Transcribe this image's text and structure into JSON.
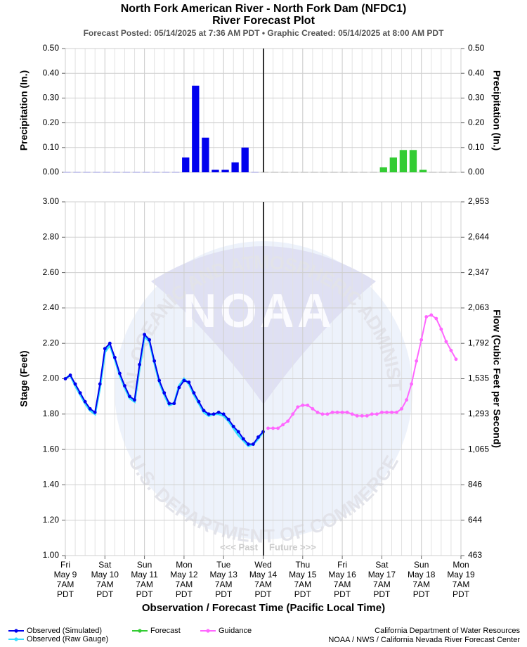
{
  "title": [
    "North Fork American River - North Fork Dam (NFDC1)",
    "River Forecast Plot"
  ],
  "subtitle": "Forecast Posted: 05/14/2025 at 7:36 AM PDT  •  Graphic Created: 05/14/2025 at 8:00 AM PDT",
  "x_label": "Observation / Forecast Time (Pacific Local Time)",
  "past_label": "<<< Past",
  "future_label": "Future >>>",
  "watermark": {
    "logo": "NOAA",
    "ring_top": "NATIONAL OCEANIC AND ATMOSPHERIC ADMINISTRATION",
    "ring_bottom": "U.S. DEPARTMENT OF COMMERCE"
  },
  "credits": [
    "California Department of Water Resources",
    "NOAA / NWS / California Nevada River Forecast Center"
  ],
  "chart_data": [
    {
      "type": "bar",
      "y_label": "Precipitation (In.)",
      "y2_label": "Precipitation (In.)",
      "xlim": [
        "05/09 07:00",
        "05/19 07:00"
      ],
      "ylim": [
        0,
        0.5
      ],
      "yticks": [
        {
          "value": 0,
          "label": "0.00"
        },
        {
          "value": 0.1,
          "label": "0.10"
        },
        {
          "value": 0.2,
          "label": "0.20"
        },
        {
          "value": 0.3,
          "label": "0.30"
        },
        {
          "value": 0.4,
          "label": "0.40"
        },
        {
          "value": 0.5,
          "label": "0.50"
        }
      ],
      "y2lim": [
        0,
        0.5
      ],
      "y2ticks": [
        {
          "value": 0,
          "label": "0.00"
        },
        {
          "value": 0.1,
          "label": "0.10"
        },
        {
          "value": 0.2,
          "label": "0.20"
        },
        {
          "value": 0.3,
          "label": "0.30"
        },
        {
          "value": 0.4,
          "label": "0.40"
        },
        {
          "value": 0.5,
          "label": "0.50"
        }
      ],
      "grid": true,
      "series": [
        {
          "color": "#0000ee",
          "zero_color": "#b8b8e8",
          "x": [
            "05/09 05:00",
            "05/09 11:00",
            "05/09 17:00",
            "05/09 23:00",
            "05/10 05:00",
            "05/10 11:00",
            "05/10 17:00",
            "05/10 23:00",
            "05/11 05:00",
            "05/11 11:00",
            "05/11 17:00",
            "05/11 23:00",
            "05/12 05:00",
            "05/12 11:00",
            "05/12 17:00",
            "05/12 23:00",
            "05/13 05:00",
            "05/13 11:00",
            "05/13 17:00",
            "05/13 23:00"
          ],
          "values": [
            0,
            0,
            0,
            0,
            0,
            0,
            0,
            0,
            0,
            0,
            0,
            0,
            0.06,
            0.35,
            0.14,
            0.01,
            0.01,
            0.04,
            0.1,
            0
          ]
        },
        {
          "color": "#33cc33",
          "zero_color": "#c8c8c8",
          "x": [
            "05/14 05:00",
            "05/14 11:00",
            "05/14 17:00",
            "05/14 23:00",
            "05/15 05:00",
            "05/15 11:00",
            "05/15 17:00",
            "05/15 23:00",
            "05/16 05:00",
            "05/16 11:00",
            "05/16 17:00",
            "05/16 23:00",
            "05/17 05:00",
            "05/17 11:00",
            "05/17 17:00",
            "05/17 23:00",
            "05/18 05:00",
            "05/18 11:00",
            "05/18 17:00",
            "05/18 23:00"
          ],
          "values": [
            0,
            0,
            0,
            0,
            0,
            0,
            0,
            0,
            0,
            0,
            0,
            0,
            0.02,
            0.06,
            0.09,
            0.09,
            0.01,
            0,
            0,
            0
          ]
        }
      ]
    },
    {
      "type": "line",
      "y_label": "Stage (Feet)",
      "y2_label": "Flow (Cubic Feet per Second)",
      "xlim": [
        "05/09 07:00",
        "05/19 07:00"
      ],
      "xticks": [
        {
          "value": "05/09 07:00",
          "label": [
            "Fri",
            "May 9",
            "7AM",
            "PDT"
          ]
        },
        {
          "value": "05/10 07:00",
          "label": [
            "Sat",
            "May 10",
            "7AM",
            "PDT"
          ]
        },
        {
          "value": "05/11 07:00",
          "label": [
            "Sun",
            "May 11",
            "7AM",
            "PDT"
          ]
        },
        {
          "value": "05/12 07:00",
          "label": [
            "Mon",
            "May 12",
            "7AM",
            "PDT"
          ]
        },
        {
          "value": "05/13 07:00",
          "label": [
            "Tue",
            "May 13",
            "7AM",
            "PDT"
          ]
        },
        {
          "value": "05/14 07:00",
          "label": [
            "Wed",
            "May 14",
            "7AM",
            "PDT"
          ]
        },
        {
          "value": "05/15 07:00",
          "label": [
            "Thu",
            "May 15",
            "7AM",
            "PDT"
          ]
        },
        {
          "value": "05/16 07:00",
          "label": [
            "Fri",
            "May 16",
            "7AM",
            "PDT"
          ]
        },
        {
          "value": "05/17 07:00",
          "label": [
            "Sat",
            "May 17",
            "7AM",
            "PDT"
          ]
        },
        {
          "value": "05/18 07:00",
          "label": [
            "Sun",
            "May 18",
            "7AM",
            "PDT"
          ]
        },
        {
          "value": "05/19 07:00",
          "label": [
            "Mon",
            "May 19",
            "7AM",
            "PDT"
          ]
        }
      ],
      "ylim": [
        1,
        3
      ],
      "yticks": [
        {
          "value": 1,
          "label": "1.00"
        },
        {
          "value": 1.2,
          "label": "1.20"
        },
        {
          "value": 1.4,
          "label": "1.40"
        },
        {
          "value": 1.6,
          "label": "1.60"
        },
        {
          "value": 1.8,
          "label": "1.80"
        },
        {
          "value": 2,
          "label": "2.00"
        },
        {
          "value": 2.2,
          "label": "2.20"
        },
        {
          "value": 2.4,
          "label": "2.40"
        },
        {
          "value": 2.6,
          "label": "2.60"
        },
        {
          "value": 2.8,
          "label": "2.80"
        },
        {
          "value": 3,
          "label": "3.00"
        }
      ],
      "y2ticks": [
        {
          "value": 463,
          "label": "463"
        },
        {
          "value": 644,
          "label": "644"
        },
        {
          "value": 846,
          "label": "846"
        },
        {
          "value": 1065,
          "label": "1,065"
        },
        {
          "value": 1293,
          "label": "1,293"
        },
        {
          "value": 1535,
          "label": "1,535"
        },
        {
          "value": 1792,
          "label": "1,792"
        },
        {
          "value": 2063,
          "label": "2,063"
        },
        {
          "value": 2347,
          "label": "2,347"
        },
        {
          "value": 2644,
          "label": "2,644"
        },
        {
          "value": 2953,
          "label": "2,953"
        }
      ],
      "grid": true,
      "series": [
        {
          "name": "Observed (Raw Gauge)",
          "color": "#33ddff",
          "x": [
            "05/09 07:00",
            "05/09 10:00",
            "05/09 13:00",
            "05/09 16:00",
            "05/09 19:00",
            "05/09 22:00",
            "05/10 01:00",
            "05/10 04:00",
            "05/10 07:00",
            "05/10 10:00",
            "05/10 13:00",
            "05/10 16:00",
            "05/10 19:00",
            "05/10 22:00",
            "05/11 01:00",
            "05/11 04:00",
            "05/11 07:00",
            "05/11 10:00",
            "05/11 13:00",
            "05/11 16:00",
            "05/11 19:00",
            "05/11 22:00",
            "05/12 01:00",
            "05/12 04:00",
            "05/12 07:00",
            "05/12 10:00",
            "05/12 13:00",
            "05/12 16:00",
            "05/12 19:00",
            "05/12 22:00",
            "05/13 01:00",
            "05/13 04:00",
            "05/13 07:00",
            "05/13 10:00",
            "05/13 13:00",
            "05/13 16:00",
            "05/13 19:00",
            "05/13 22:00",
            "05/14 01:00",
            "05/14 04:00",
            "05/14 07:00"
          ],
          "values": [
            2.0,
            2.02,
            1.96,
            1.91,
            1.86,
            1.82,
            1.8,
            1.95,
            2.15,
            2.19,
            2.11,
            2.02,
            1.95,
            1.89,
            1.87,
            2.06,
            2.24,
            2.21,
            2.09,
            1.98,
            1.91,
            1.85,
            1.86,
            1.96,
            2.0,
            1.97,
            1.91,
            1.86,
            1.81,
            1.79,
            1.8,
            1.8,
            1.79,
            1.76,
            1.72,
            1.68,
            1.65,
            1.62,
            1.63,
            1.66,
            1.7
          ]
        },
        {
          "name": "Observed (Simulated)",
          "color": "#0000ee",
          "x": [
            "05/09 07:00",
            "05/09 10:00",
            "05/09 13:00",
            "05/09 16:00",
            "05/09 19:00",
            "05/09 22:00",
            "05/10 01:00",
            "05/10 04:00",
            "05/10 07:00",
            "05/10 10:00",
            "05/10 13:00",
            "05/10 16:00",
            "05/10 19:00",
            "05/10 22:00",
            "05/11 01:00",
            "05/11 04:00",
            "05/11 07:00",
            "05/11 10:00",
            "05/11 13:00",
            "05/11 16:00",
            "05/11 19:00",
            "05/11 22:00",
            "05/12 01:00",
            "05/12 04:00",
            "05/12 07:00",
            "05/12 10:00",
            "05/12 13:00",
            "05/12 16:00",
            "05/12 19:00",
            "05/12 22:00",
            "05/13 01:00",
            "05/13 04:00",
            "05/13 07:00",
            "05/13 10:00",
            "05/13 13:00",
            "05/13 16:00",
            "05/13 19:00",
            "05/13 22:00",
            "05/14 01:00",
            "05/14 04:00",
            "05/14 07:00"
          ],
          "values": [
            2.0,
            2.02,
            1.97,
            1.92,
            1.87,
            1.83,
            1.81,
            1.97,
            2.17,
            2.2,
            2.12,
            2.03,
            1.96,
            1.9,
            1.88,
            2.08,
            2.25,
            2.22,
            2.1,
            1.99,
            1.92,
            1.86,
            1.86,
            1.95,
            1.99,
            1.98,
            1.92,
            1.87,
            1.82,
            1.8,
            1.8,
            1.81,
            1.8,
            1.77,
            1.73,
            1.7,
            1.66,
            1.63,
            1.63,
            1.67,
            1.7
          ]
        },
        {
          "name": "Forecast",
          "color": "#33cc33",
          "x": [],
          "values": []
        },
        {
          "name": "Guidance",
          "color": "#ff66ff",
          "x": [
            "05/14 10:00",
            "05/14 13:00",
            "05/14 16:00",
            "05/14 19:00",
            "05/14 22:00",
            "05/15 01:00",
            "05/15 04:00",
            "05/15 07:00",
            "05/15 10:00",
            "05/15 13:00",
            "05/15 16:00",
            "05/15 19:00",
            "05/15 22:00",
            "05/16 01:00",
            "05/16 04:00",
            "05/16 07:00",
            "05/16 10:00",
            "05/16 13:00",
            "05/16 16:00",
            "05/16 19:00",
            "05/16 22:00",
            "05/17 01:00",
            "05/17 04:00",
            "05/17 07:00",
            "05/17 10:00",
            "05/17 13:00",
            "05/17 16:00",
            "05/17 19:00",
            "05/17 22:00",
            "05/18 01:00",
            "05/18 04:00",
            "05/18 07:00",
            "05/18 10:00",
            "05/18 13:00",
            "05/18 16:00",
            "05/18 19:00",
            "05/18 22:00",
            "05/19 01:00",
            "05/19 04:00"
          ],
          "values": [
            1.72,
            1.72,
            1.72,
            1.74,
            1.76,
            1.8,
            1.84,
            1.85,
            1.85,
            1.83,
            1.81,
            1.8,
            1.8,
            1.81,
            1.81,
            1.81,
            1.81,
            1.8,
            1.79,
            1.79,
            1.79,
            1.8,
            1.8,
            1.81,
            1.81,
            1.81,
            1.81,
            1.83,
            1.88,
            1.97,
            2.1,
            2.22,
            2.35,
            2.36,
            2.34,
            2.28,
            2.21,
            2.16,
            2.11
          ]
        }
      ]
    }
  ]
}
